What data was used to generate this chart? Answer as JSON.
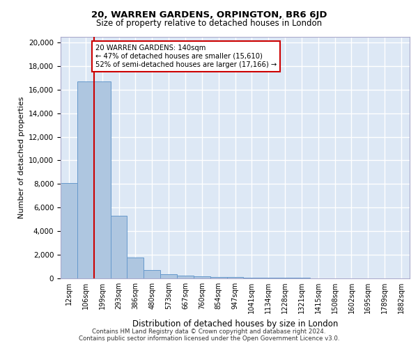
{
  "title1": "20, WARREN GARDENS, ORPINGTON, BR6 6JD",
  "title2": "Size of property relative to detached houses in London",
  "xlabel": "Distribution of detached houses by size in London",
  "ylabel": "Number of detached properties",
  "annotation_line1": "20 WARREN GARDENS: 140sqm",
  "annotation_line2": "← 47% of detached houses are smaller (15,610)",
  "annotation_line3": "52% of semi-detached houses are larger (17,166) →",
  "footer1": "Contains HM Land Registry data © Crown copyright and database right 2024.",
  "footer2": "Contains public sector information licensed under the Open Government Licence v3.0.",
  "categories": [
    "12sqm",
    "106sqm",
    "199sqm",
    "293sqm",
    "386sqm",
    "480sqm",
    "573sqm",
    "667sqm",
    "760sqm",
    "854sqm",
    "947sqm",
    "1041sqm",
    "1134sqm",
    "1228sqm",
    "1321sqm",
    "1415sqm",
    "1508sqm",
    "1602sqm",
    "1695sqm",
    "1789sqm",
    "1882sqm"
  ],
  "values": [
    8100,
    16700,
    16700,
    5300,
    1750,
    700,
    375,
    230,
    175,
    120,
    90,
    70,
    55,
    45,
    35,
    25,
    20,
    15,
    12,
    10,
    8
  ],
  "bar_color": "#aec6e0",
  "bar_edge_color": "#6699cc",
  "ylim": [
    0,
    20500
  ],
  "yticks": [
    0,
    2000,
    4000,
    6000,
    8000,
    10000,
    12000,
    14000,
    16000,
    18000,
    20000
  ],
  "bg_color": "#dde8f5",
  "fig_bg_color": "#ffffff",
  "grid_color": "#ffffff",
  "red_color": "#cc0000",
  "red_line_x": 1.5
}
